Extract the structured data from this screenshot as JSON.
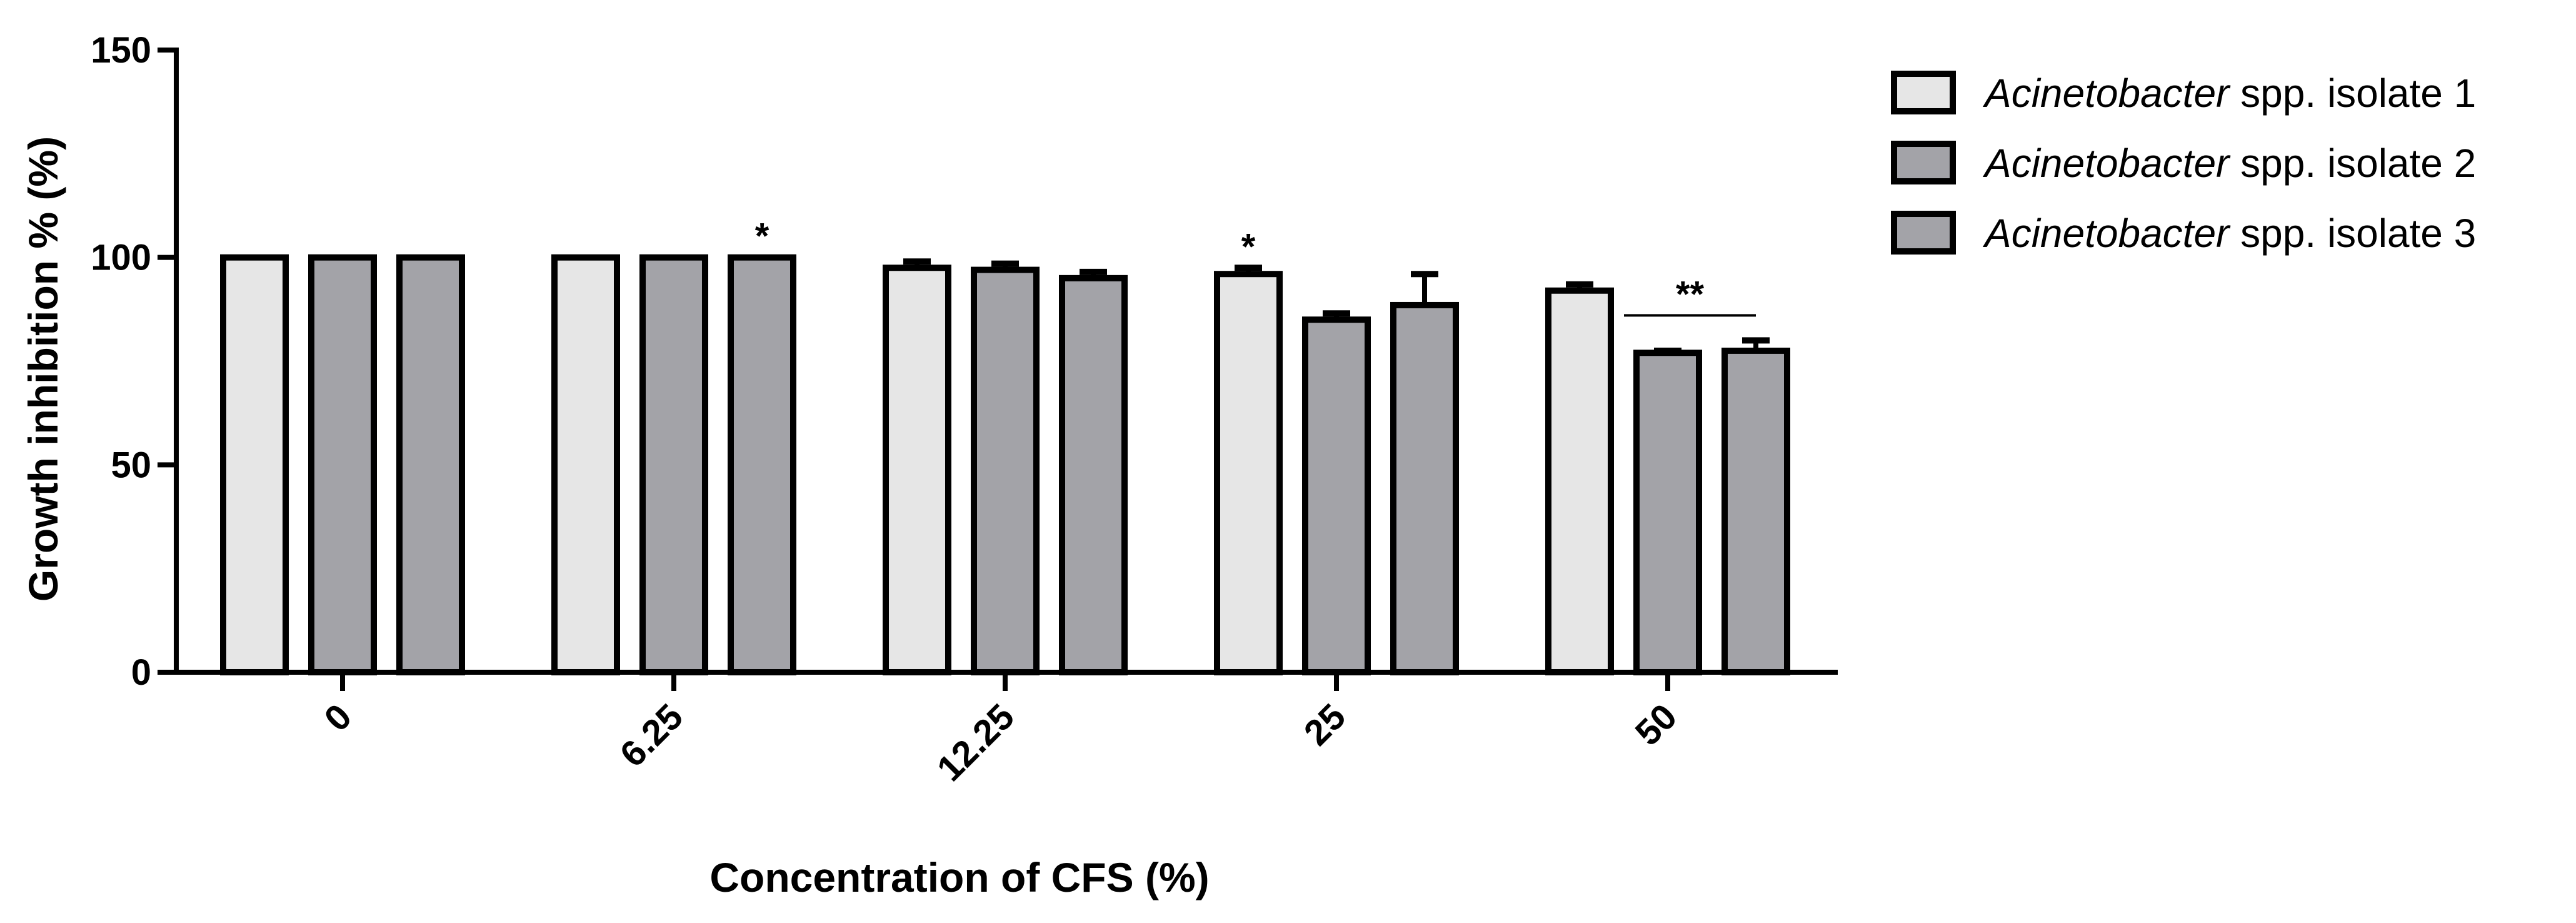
{
  "chart_data": {
    "type": "bar",
    "title": "",
    "xlabel": "Concentration of CFS (%)",
    "ylabel": "Growth inhibition % (%)",
    "ylim": [
      0,
      150
    ],
    "yticks": [
      0,
      50,
      100,
      150
    ],
    "categories": [
      "0",
      "6.25",
      "12.25",
      "25",
      "50"
    ],
    "series": [
      {
        "name_italic": "Acinetobacter",
        "name_rest": " spp. isolate 1",
        "color": "#e6e6e6",
        "values": [
          100,
          100,
          97.5,
          96,
          92
        ],
        "errors": [
          0,
          0,
          1.5,
          1.5,
          1.5
        ]
      },
      {
        "name_italic": "Acinetobacter",
        "name_rest": " spp. isolate 2",
        "color": "#a3a3a8",
        "values": [
          100,
          100,
          97,
          85,
          77
        ],
        "errors": [
          0,
          0,
          1.5,
          1.5,
          0.5
        ]
      },
      {
        "name_italic": "Acinetobacter",
        "name_rest": " spp. isolate 3",
        "color": "#a3a3a8",
        "values": [
          100,
          100,
          95,
          88.5,
          77.5
        ],
        "errors": [
          0,
          0,
          1.5,
          7.5,
          2.5
        ]
      }
    ],
    "annotations": [
      {
        "text": "*",
        "category": 1,
        "series": 2
      },
      {
        "text": "*",
        "category": 3,
        "series": 0
      },
      {
        "text": "**",
        "category": 4,
        "series": 1,
        "bracket_to_series": 2
      }
    ],
    "legend_position": "top-right",
    "grid": false
  }
}
